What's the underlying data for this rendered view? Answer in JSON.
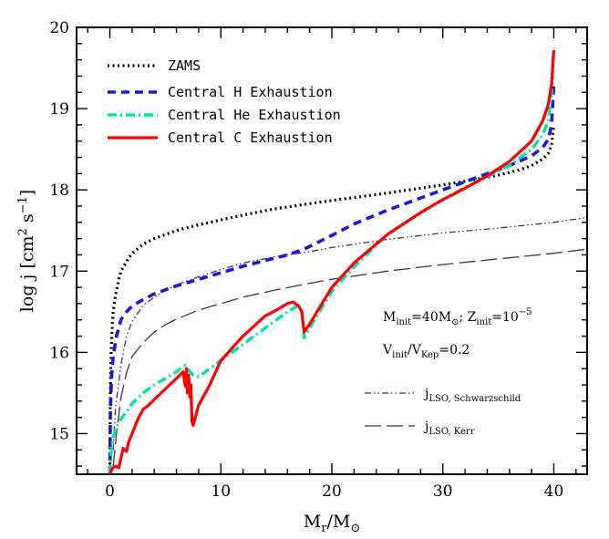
{
  "chart_data": {
    "type": "line",
    "title": "",
    "xlabel": "M_r/M_⊙",
    "ylabel": "log j [cm² s⁻¹]",
    "xlim": [
      -3,
      43
    ],
    "ylim": [
      14.5,
      20
    ],
    "xticks": [
      0,
      10,
      20,
      30,
      40
    ],
    "yticks": [
      15,
      16,
      17,
      18,
      19,
      20
    ],
    "xtick_labels": [
      "0",
      "10",
      "20",
      "30",
      "40"
    ],
    "ytick_labels": [
      "15",
      "16",
      "17",
      "18",
      "19",
      "20"
    ],
    "legend_position": "top-left",
    "annotation": {
      "line1": "M_init=40M_⊙; Z_init=10^-5",
      "line2": "V_init/V_Kep=0.2"
    },
    "series": [
      {
        "name": "ZAMS",
        "color": "#000000",
        "style": "dotted",
        "x": [
          0,
          0.05,
          0.1,
          0.2,
          0.3,
          0.5,
          0.8,
          1,
          1.5,
          2,
          3,
          4,
          5,
          6,
          8,
          10,
          12,
          15,
          18,
          20,
          25,
          30,
          33,
          35,
          37,
          38,
          39,
          39.5,
          39.8,
          40
        ],
        "y": [
          14.5,
          15.6,
          15.95,
          16.3,
          16.5,
          16.7,
          16.9,
          17.0,
          17.12,
          17.22,
          17.33,
          17.4,
          17.45,
          17.5,
          17.57,
          17.63,
          17.69,
          17.77,
          17.83,
          17.87,
          17.96,
          18.06,
          18.13,
          18.18,
          18.25,
          18.3,
          18.38,
          18.45,
          18.55,
          18.8
        ]
      },
      {
        "name": "Central H Exhaustion",
        "color": "#1a1ad6",
        "style": "dashed",
        "x": [
          0,
          0.05,
          0.15,
          0.3,
          0.6,
          1,
          1.5,
          2,
          3,
          4,
          5,
          6,
          8,
          10,
          12,
          14,
          16,
          17.5,
          20,
          22,
          25,
          28,
          30,
          32,
          34,
          36,
          38,
          39,
          39.5,
          39.8,
          40
        ],
        "y": [
          14.5,
          15.3,
          15.7,
          15.95,
          16.2,
          16.4,
          16.5,
          16.57,
          16.65,
          16.72,
          16.77,
          16.82,
          16.9,
          16.98,
          17.06,
          17.13,
          17.2,
          17.27,
          17.44,
          17.58,
          17.75,
          17.9,
          18.0,
          18.1,
          18.2,
          18.3,
          18.42,
          18.52,
          18.62,
          18.8,
          19.3
        ]
      },
      {
        "name": "Central He Exhaustion",
        "color": "#00e6a0",
        "style": "dash-dot",
        "x": [
          0,
          0.1,
          0.3,
          0.6,
          1,
          1.5,
          2,
          3,
          4,
          5,
          6,
          6.5,
          6.8,
          7,
          7.5,
          8,
          10,
          12,
          14,
          16,
          17,
          17.3,
          17.5,
          18,
          20,
          22,
          25,
          28,
          30,
          32,
          34,
          36,
          38,
          39,
          39.5,
          39.8,
          40
        ],
        "y": [
          14.5,
          14.75,
          14.95,
          15.08,
          15.18,
          15.27,
          15.37,
          15.5,
          15.6,
          15.68,
          15.76,
          15.82,
          15.84,
          15.8,
          15.72,
          15.7,
          15.9,
          16.1,
          16.3,
          16.5,
          16.58,
          16.5,
          16.18,
          16.3,
          16.75,
          17.05,
          17.45,
          17.72,
          17.88,
          18.03,
          18.16,
          18.3,
          18.5,
          18.68,
          18.85,
          19.2,
          19.75
        ]
      },
      {
        "name": "Central C Exhaustion",
        "color": "#ff0000",
        "style": "solid",
        "x": [
          0,
          0.2,
          0.5,
          0.8,
          1.0,
          1.2,
          1.5,
          1.7,
          2.0,
          2.3,
          2.6,
          3.0,
          3.5,
          4,
          5,
          6,
          6.6,
          6.8,
          6.9,
          7.0,
          7.1,
          7.2,
          7.3,
          7.4,
          7.5,
          8,
          9,
          10,
          12,
          14,
          15,
          16,
          16.5,
          17,
          17.3,
          17.5,
          18,
          20,
          22,
          25,
          28,
          30,
          32,
          34,
          36,
          38,
          39,
          39.5,
          39.8,
          40
        ],
        "y": [
          14.5,
          14.57,
          14.6,
          14.58,
          14.7,
          14.82,
          14.78,
          14.9,
          15.0,
          15.1,
          15.2,
          15.3,
          15.35,
          15.42,
          15.55,
          15.68,
          15.76,
          15.58,
          15.8,
          15.5,
          15.72,
          15.45,
          15.6,
          15.15,
          15.1,
          15.35,
          15.6,
          15.9,
          16.2,
          16.45,
          16.52,
          16.6,
          16.62,
          16.57,
          16.5,
          16.25,
          16.35,
          16.8,
          17.1,
          17.45,
          17.72,
          17.88,
          18.02,
          18.17,
          18.35,
          18.6,
          18.85,
          19.05,
          19.3,
          19.72
        ]
      },
      {
        "name": "j_LSO, Schwarzschild",
        "color": "#4a2a5a",
        "style": "dash-dot-dot",
        "x": [
          0.3,
          0.5,
          1,
          1.5,
          2,
          3,
          4,
          5,
          6,
          8,
          10,
          12,
          15,
          18,
          20,
          25,
          30,
          35,
          40,
          43
        ],
        "y": [
          14.8,
          15.3,
          15.85,
          16.2,
          16.38,
          16.58,
          16.68,
          16.76,
          16.83,
          16.93,
          17.02,
          17.1,
          17.18,
          17.24,
          17.29,
          17.39,
          17.47,
          17.53,
          17.6,
          17.66
        ]
      },
      {
        "name": "j_LSO, Kerr",
        "color": "#4a2a5a",
        "style": "long-dash",
        "x": [
          0.3,
          0.6,
          1,
          1.5,
          2,
          3,
          4,
          5,
          6,
          8,
          10,
          12,
          15,
          18,
          20,
          25,
          30,
          35,
          40,
          43
        ],
        "y": [
          14.6,
          15.0,
          15.45,
          15.75,
          15.95,
          16.12,
          16.25,
          16.34,
          16.41,
          16.52,
          16.6,
          16.68,
          16.77,
          16.85,
          16.9,
          17.0,
          17.08,
          17.15,
          17.22,
          17.27
        ]
      }
    ]
  }
}
